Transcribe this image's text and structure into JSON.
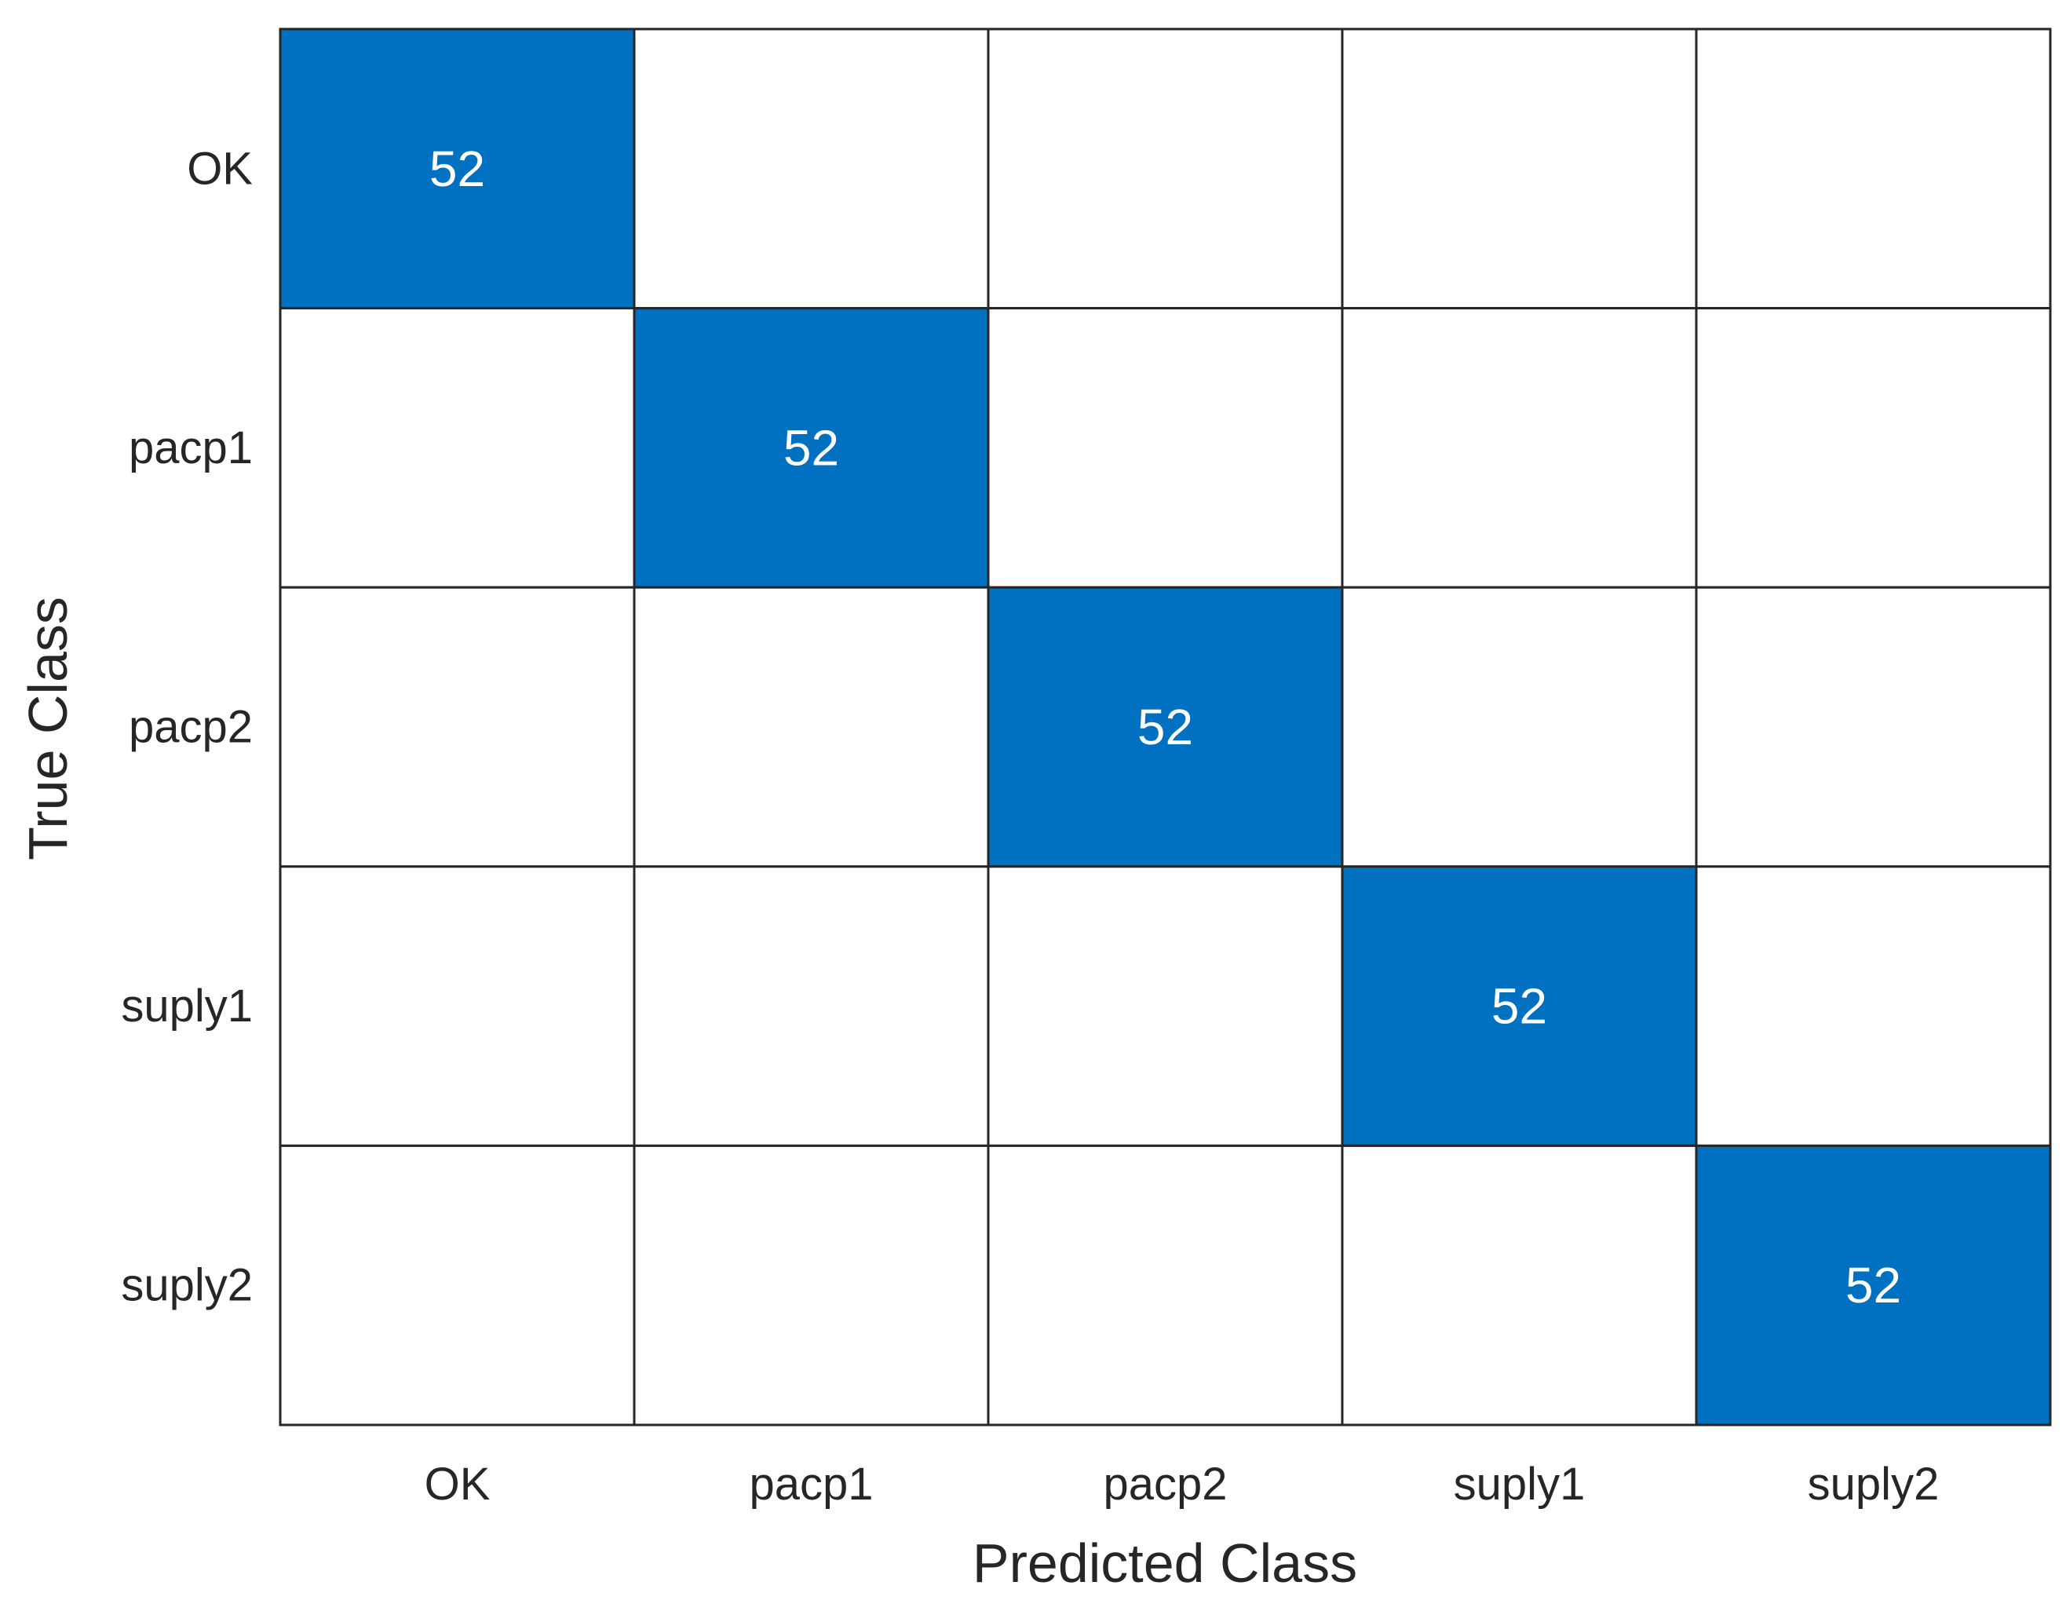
{
  "chart_data": {
    "type": "heatmap",
    "subtype": "confusion-matrix",
    "xlabel": "Predicted Class",
    "ylabel": "True Class",
    "x_categories": [
      "OK",
      "pacp1",
      "pacp2",
      "suply1",
      "suply2"
    ],
    "y_categories": [
      "OK",
      "pacp1",
      "pacp2",
      "suply1",
      "suply2"
    ],
    "matrix": [
      [
        52,
        0,
        0,
        0,
        0
      ],
      [
        0,
        52,
        0,
        0,
        0
      ],
      [
        0,
        0,
        52,
        0,
        0
      ],
      [
        0,
        0,
        0,
        52,
        0
      ],
      [
        0,
        0,
        0,
        0,
        52
      ]
    ],
    "zero_cells_labeled": false,
    "colors": {
      "filled_cell": "#0070c0",
      "empty_cell": "#ffffff",
      "filled_text": "#ffffff",
      "grid_line": "#262626"
    }
  }
}
